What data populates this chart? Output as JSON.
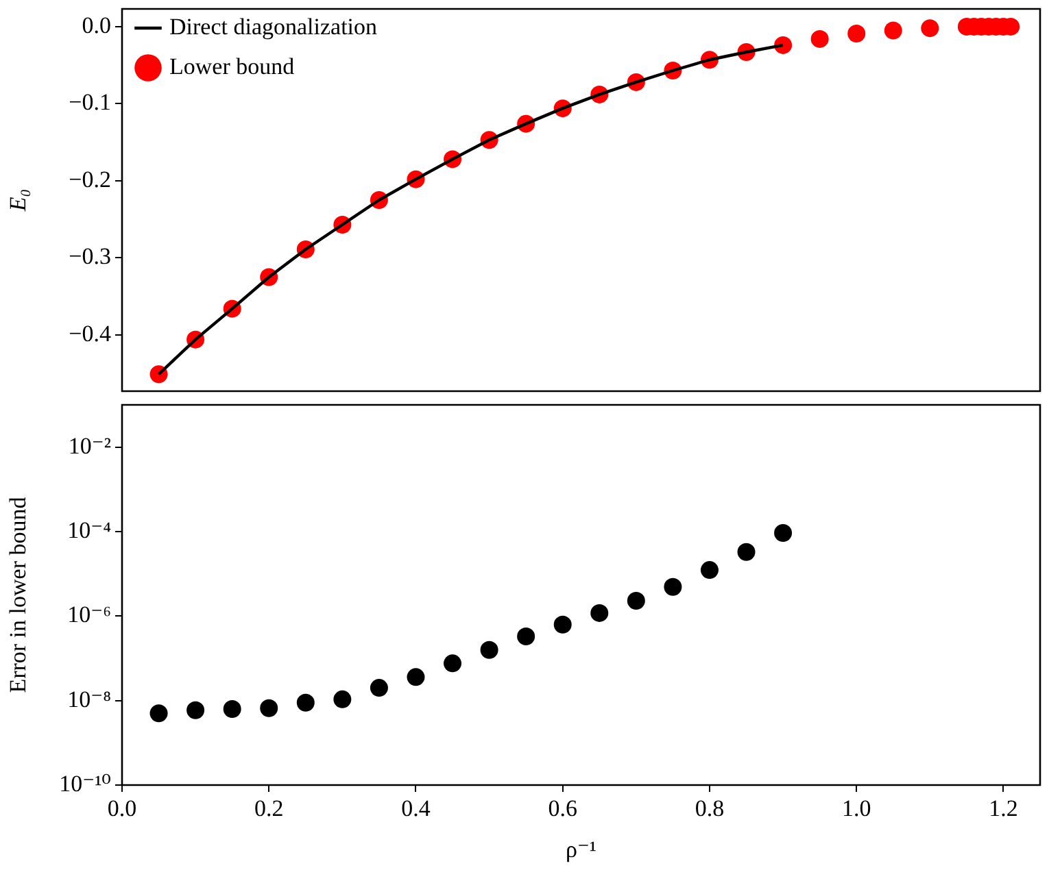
{
  "chart_data": [
    {
      "type": "scatter",
      "ylabel": "E₀",
      "xlim": [
        0,
        1.25
      ],
      "ylim": [
        -0.473,
        0.023
      ],
      "tick_labels": "y",
      "legend": "top left",
      "yticks": [
        {
          "value": 0,
          "label": "0.0"
        },
        {
          "value": -0.1,
          "label": "−0.1"
        },
        {
          "value": -0.2,
          "label": "−0.2"
        },
        {
          "value": -0.3,
          "label": "−0.3"
        },
        {
          "value": -0.4,
          "label": "−0.4"
        }
      ],
      "series": [
        {
          "name": "Direct diagonalization",
          "type": "line",
          "marker": "none",
          "line_style": "solid",
          "color": "#000000",
          "x": [
            0.05,
            0.1,
            0.15,
            0.2,
            0.25,
            0.3,
            0.35,
            0.4,
            0.45,
            0.5,
            0.55,
            0.6,
            0.65,
            0.7,
            0.75,
            0.8,
            0.85,
            0.9
          ],
          "values": [
            -0.451,
            -0.406,
            -0.366,
            -0.325,
            -0.289,
            -0.257,
            -0.225,
            -0.198,
            -0.172,
            -0.147,
            -0.126,
            -0.106,
            -0.088,
            -0.072,
            -0.057,
            -0.043,
            -0.033,
            -0.024
          ]
        },
        {
          "name": "Lower bound",
          "marker": "circle",
          "color": "#ff0000",
          "x": [
            0.05,
            0.1,
            0.15,
            0.2,
            0.25,
            0.3,
            0.35,
            0.4,
            0.45,
            0.5,
            0.55,
            0.6,
            0.65,
            0.7,
            0.75,
            0.8,
            0.85,
            0.9,
            0.95,
            1.0,
            1.05,
            1.1,
            1.15,
            1.16,
            1.17,
            1.18,
            1.19,
            1.2,
            1.21
          ],
          "values": [
            -0.451,
            -0.406,
            -0.366,
            -0.325,
            -0.289,
            -0.257,
            -0.225,
            -0.198,
            -0.172,
            -0.147,
            -0.126,
            -0.106,
            -0.088,
            -0.072,
            -0.057,
            -0.043,
            -0.033,
            -0.024,
            -0.016,
            -0.009,
            -0.005,
            -0.002,
            0,
            0,
            0,
            0,
            0,
            0,
            0
          ]
        }
      ]
    },
    {
      "type": "scatter",
      "xlabel": "ρ⁻¹",
      "ylabel": "Error in lower bound",
      "log": "y",
      "marker": "circle",
      "color": "#000000",
      "xlim": [
        0,
        1.25
      ],
      "ylim": [
        1e-10,
        0.1
      ],
      "xticks": [
        {
          "value": 0,
          "label": "0.0"
        },
        {
          "value": 0.2,
          "label": "0.2"
        },
        {
          "value": 0.4,
          "label": "0.4"
        },
        {
          "value": 0.6,
          "label": "0.6"
        },
        {
          "value": 0.8,
          "label": "0.8"
        },
        {
          "value": 1,
          "label": "1.0"
        },
        {
          "value": 1.2,
          "label": "1.2"
        }
      ],
      "yticks": [
        {
          "value": 1e-10,
          "label": "10⁻¹⁰"
        },
        {
          "value": 1e-08,
          "label": "10⁻⁸"
        },
        {
          "value": 1e-06,
          "label": "10⁻⁶"
        },
        {
          "value": 0.0001,
          "label": "10⁻⁴"
        },
        {
          "value": 0.01,
          "label": "10⁻²"
        }
      ],
      "x": [
        0.05,
        0.1,
        0.15,
        0.2,
        0.25,
        0.3,
        0.35,
        0.4,
        0.45,
        0.5,
        0.55,
        0.6,
        0.65,
        0.7,
        0.75,
        0.8,
        0.85,
        0.9
      ],
      "values": [
        5e-09,
        5.9e-09,
        6.3e-09,
        6.6e-09,
        8.9e-09,
        1.07e-08,
        2e-08,
        3.6e-08,
        7.6e-08,
        1.58e-07,
        3.3e-07,
        6.3e-07,
        1.18e-06,
        2.3e-06,
        4.9e-06,
        1.23e-05,
        3.3e-05,
        9.3e-05
      ]
    }
  ]
}
